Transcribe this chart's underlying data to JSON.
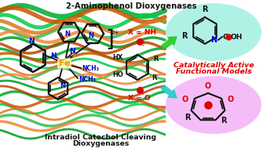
{
  "title_top": "2-Aminophenol Dioxygenases",
  "title_bot1": "Intradiol Catechol Cleaving",
  "title_bot2": "Dioxygenases",
  "cat_active1": "Catalytically Active",
  "cat_active2": "Functional Models",
  "x_nh": "X = NH",
  "x_o": "X = O",
  "bg_color": "#ffffff",
  "top_ellipse_color": "#aaf0e4",
  "bot_ellipse_color": "#f5b8f8",
  "arrow_top_color": "#22cc22",
  "arrow_bot_color": "#22cccc",
  "text_red": "#dd0000",
  "text_blue": "#0000bb",
  "text_black": "#111111",
  "fe_color": "#ee9900",
  "n_color": "#0000cc",
  "o_color": "#dd0000",
  "protein_orange": [
    "#cc5500",
    "#dd7722",
    "#ee8833",
    "#bb4400"
  ],
  "protein_green": [
    "#00aa33",
    "#00cc44",
    "#33bb55",
    "#009922"
  ],
  "font_title": 7.2,
  "font_label": 6.5,
  "font_small": 5.5,
  "figw": 3.35,
  "figh": 1.89,
  "dpi": 100
}
